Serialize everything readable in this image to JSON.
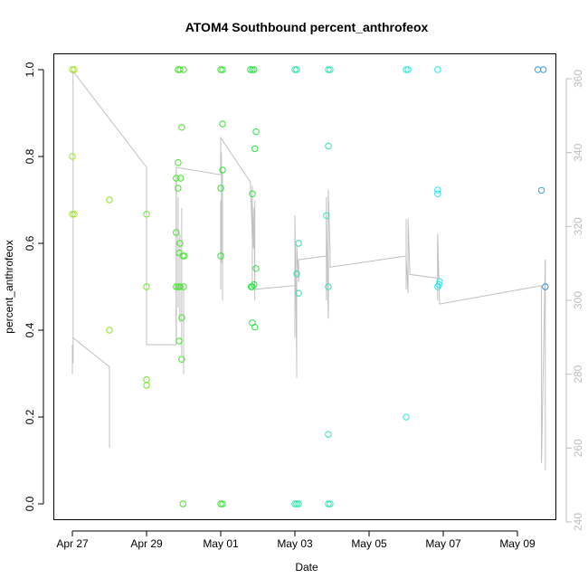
{
  "chart_data": {
    "type": "scatter",
    "title": "ATOM4 Southbound percent_anthrofeox",
    "xlabel": "Date",
    "ylabel": "percent_anthrofeox",
    "ylim": [
      0,
      1
    ],
    "y_ticks": [
      {
        "value": 0.0,
        "label": "0.0"
      },
      {
        "value": 0.2,
        "label": "0.2"
      },
      {
        "value": 0.4,
        "label": "0.4"
      },
      {
        "value": 0.6,
        "label": "0.6"
      },
      {
        "value": 0.8,
        "label": "0.8"
      },
      {
        "value": 1.0,
        "label": "1.0"
      }
    ],
    "x_range_days": [
      0,
      12.6
    ],
    "x_ticks": [
      {
        "day": 0,
        "label": "Apr 27"
      },
      {
        "day": 2,
        "label": "Apr 29"
      },
      {
        "day": 4,
        "label": "May 01"
      },
      {
        "day": 6,
        "label": "May 03"
      },
      {
        "day": 8,
        "label": "May 05"
      },
      {
        "day": 10,
        "label": "May 07"
      },
      {
        "day": 12,
        "label": "May 09"
      }
    ],
    "secondary_axis": {
      "ylim": [
        240,
        365
      ],
      "ticks": [
        {
          "value": 240,
          "label": "240"
        },
        {
          "value": 260,
          "label": "260"
        },
        {
          "value": 280,
          "label": "280"
        },
        {
          "value": 300,
          "label": "300"
        },
        {
          "value": 320,
          "label": "320"
        },
        {
          "value": 340,
          "label": "340"
        },
        {
          "value": 360,
          "label": "360"
        }
      ],
      "color": "#bdbdbd"
    },
    "points": [
      {
        "day": 0.0,
        "y": 1.0,
        "color": "#a6e22a"
      },
      {
        "day": 0.05,
        "y": 1.0,
        "color": "#a6e22a"
      },
      {
        "day": 0.0,
        "y": 0.8,
        "color": "#9ee52a"
      },
      {
        "day": 0.0,
        "y": 0.667,
        "color": "#9ee52a"
      },
      {
        "day": 0.05,
        "y": 0.667,
        "color": "#9ee52a"
      },
      {
        "day": 1.0,
        "y": 0.7,
        "color": "#8ce52a"
      },
      {
        "day": 1.0,
        "y": 0.4,
        "color": "#8ce52a"
      },
      {
        "day": 2.0,
        "y": 0.667,
        "color": "#6ee62a"
      },
      {
        "day": 2.0,
        "y": 0.5,
        "color": "#6ee62a"
      },
      {
        "day": 2.0,
        "y": 0.286,
        "color": "#6ee62a"
      },
      {
        "day": 2.0,
        "y": 0.273,
        "color": "#6ee62a"
      },
      {
        "day": 2.85,
        "y": 1.0,
        "color": "#44e52a"
      },
      {
        "day": 2.9,
        "y": 1.0,
        "color": "#44e52a"
      },
      {
        "day": 3.0,
        "y": 1.0,
        "color": "#44e52a"
      },
      {
        "day": 2.95,
        "y": 0.867,
        "color": "#44e52a"
      },
      {
        "day": 2.85,
        "y": 0.786,
        "color": "#44e52a"
      },
      {
        "day": 2.8,
        "y": 0.75,
        "color": "#44e52a"
      },
      {
        "day": 2.92,
        "y": 0.75,
        "color": "#44e52a"
      },
      {
        "day": 2.85,
        "y": 0.727,
        "color": "#44e52a"
      },
      {
        "day": 2.8,
        "y": 0.625,
        "color": "#44e52a"
      },
      {
        "day": 2.9,
        "y": 0.6,
        "color": "#44e52a"
      },
      {
        "day": 2.88,
        "y": 0.578,
        "color": "#44e52a"
      },
      {
        "day": 2.98,
        "y": 0.571,
        "color": "#44e52a"
      },
      {
        "day": 3.02,
        "y": 0.571,
        "color": "#44e52a"
      },
      {
        "day": 2.8,
        "y": 0.5,
        "color": "#44e52a"
      },
      {
        "day": 2.85,
        "y": 0.5,
        "color": "#44e52a"
      },
      {
        "day": 2.9,
        "y": 0.5,
        "color": "#44e52a"
      },
      {
        "day": 3.0,
        "y": 0.5,
        "color": "#44e52a"
      },
      {
        "day": 2.95,
        "y": 0.429,
        "color": "#44e52a"
      },
      {
        "day": 2.88,
        "y": 0.375,
        "color": "#44e52a"
      },
      {
        "day": 2.95,
        "y": 0.333,
        "color": "#44e52a"
      },
      {
        "day": 2.98,
        "y": 0.0,
        "color": "#44e52a"
      },
      {
        "day": 4.0,
        "y": 1.0,
        "color": "#32e533"
      },
      {
        "day": 4.05,
        "y": 1.0,
        "color": "#32e533"
      },
      {
        "day": 4.05,
        "y": 0.875,
        "color": "#32e533"
      },
      {
        "day": 4.05,
        "y": 0.769,
        "color": "#32e533"
      },
      {
        "day": 4.0,
        "y": 0.727,
        "color": "#32e533"
      },
      {
        "day": 4.0,
        "y": 0.571,
        "color": "#32e533"
      },
      {
        "day": 4.0,
        "y": 0.0,
        "color": "#32e533"
      },
      {
        "day": 4.05,
        "y": 0.0,
        "color": "#32e533"
      },
      {
        "day": 4.8,
        "y": 1.0,
        "color": "#2ae545"
      },
      {
        "day": 4.85,
        "y": 1.0,
        "color": "#2ae545"
      },
      {
        "day": 4.9,
        "y": 1.0,
        "color": "#2ae545"
      },
      {
        "day": 4.95,
        "y": 0.857,
        "color": "#2ae545"
      },
      {
        "day": 4.92,
        "y": 0.818,
        "color": "#2ae545"
      },
      {
        "day": 4.85,
        "y": 0.714,
        "color": "#2ae545"
      },
      {
        "day": 4.95,
        "y": 0.542,
        "color": "#2ae545"
      },
      {
        "day": 4.82,
        "y": 0.5,
        "color": "#2ae545"
      },
      {
        "day": 4.85,
        "y": 0.5,
        "color": "#2ae545"
      },
      {
        "day": 4.9,
        "y": 0.505,
        "color": "#2ae545"
      },
      {
        "day": 4.85,
        "y": 0.417,
        "color": "#2ae545"
      },
      {
        "day": 4.92,
        "y": 0.407,
        "color": "#2ae545"
      },
      {
        "day": 6.0,
        "y": 1.0,
        "color": "#2ae5a8"
      },
      {
        "day": 6.05,
        "y": 1.0,
        "color": "#2ae5a8"
      },
      {
        "day": 6.1,
        "y": 0.6,
        "color": "#2ae5a8"
      },
      {
        "day": 6.05,
        "y": 0.53,
        "color": "#2ae5a8"
      },
      {
        "day": 6.1,
        "y": 0.485,
        "color": "#2ae5a8"
      },
      {
        "day": 6.0,
        "y": 0.0,
        "color": "#2ae5a8"
      },
      {
        "day": 6.05,
        "y": 0.0,
        "color": "#2ae5a8"
      },
      {
        "day": 6.1,
        "y": 0.0,
        "color": "#2ae5a8"
      },
      {
        "day": 6.9,
        "y": 1.0,
        "color": "#2ae5bc"
      },
      {
        "day": 6.95,
        "y": 1.0,
        "color": "#2ae5bc"
      },
      {
        "day": 6.9,
        "y": 0.824,
        "color": "#2ae5bc"
      },
      {
        "day": 6.85,
        "y": 0.664,
        "color": "#2ae5bc"
      },
      {
        "day": 6.9,
        "y": 0.5,
        "color": "#2ae5bc"
      },
      {
        "day": 6.9,
        "y": 0.16,
        "color": "#2ae5bc"
      },
      {
        "day": 6.9,
        "y": 0.0,
        "color": "#2ae5bc"
      },
      {
        "day": 6.95,
        "y": 0.0,
        "color": "#2ae5bc"
      },
      {
        "day": 9.0,
        "y": 1.0,
        "color": "#2ae5e0"
      },
      {
        "day": 9.05,
        "y": 1.0,
        "color": "#2ae5e0"
      },
      {
        "day": 9.0,
        "y": 0.2,
        "color": "#2ae5e0"
      },
      {
        "day": 9.85,
        "y": 1.0,
        "color": "#2ae5f0"
      },
      {
        "day": 9.85,
        "y": 0.723,
        "color": "#2ae5f0"
      },
      {
        "day": 9.85,
        "y": 0.714,
        "color": "#2ae5f0"
      },
      {
        "day": 9.9,
        "y": 0.512,
        "color": "#2ae5f0"
      },
      {
        "day": 9.88,
        "y": 0.505,
        "color": "#2ae5f0"
      },
      {
        "day": 9.85,
        "y": 0.5,
        "color": "#2ae5f0"
      },
      {
        "day": 12.55,
        "y": 1.0,
        "color": "#3aa0e0"
      },
      {
        "day": 12.7,
        "y": 1.0,
        "color": "#3aa0e0"
      },
      {
        "day": 12.65,
        "y": 0.722,
        "color": "#3aa0e0"
      },
      {
        "day": 12.75,
        "y": 0.5,
        "color": "#3a90d8"
      }
    ],
    "secondary_trace": [
      [
        0.0,
        280
      ],
      [
        0.0,
        288
      ],
      [
        0.02,
        283
      ],
      [
        0.02,
        362
      ],
      [
        2.0,
        336
      ],
      [
        2.0,
        288
      ],
      [
        2.8,
        288
      ],
      [
        2.8,
        336
      ],
      [
        4.0,
        334
      ],
      [
        4.0,
        344
      ],
      [
        4.8,
        332
      ],
      [
        4.85,
        317
      ],
      [
        4.85,
        328
      ],
      [
        4.88,
        314
      ],
      [
        4.9,
        325
      ],
      [
        4.92,
        303
      ],
      [
        6.0,
        304
      ],
      [
        6.0,
        323
      ],
      [
        6.05,
        282
      ],
      [
        6.05,
        315
      ],
      [
        6.1,
        305
      ],
      [
        6.1,
        311
      ],
      [
        6.85,
        312
      ],
      [
        6.85,
        323
      ],
      [
        6.9,
        295
      ],
      [
        6.9,
        330
      ],
      [
        6.95,
        313
      ],
      [
        6.95,
        309
      ],
      [
        9.0,
        312
      ],
      [
        9.05,
        302
      ],
      [
        9.05,
        322
      ],
      [
        9.1,
        307
      ],
      [
        9.85,
        306
      ],
      [
        9.85,
        318
      ],
      [
        9.9,
        299
      ],
      [
        12.65,
        304
      ],
      [
        12.65,
        256
      ],
      [
        12.75,
        311
      ]
    ],
    "secondary_trace_extra": [
      [
        [
          0.0,
          290
        ],
        [
          1.0,
          282
        ],
        [
          1.0,
          260
        ]
      ],
      [
        [
          2.8,
          290
        ],
        [
          2.8,
          335
        ]
      ],
      [
        [
          2.85,
          298
        ],
        [
          2.85,
          328
        ]
      ],
      [
        [
          2.9,
          294
        ],
        [
          2.9,
          318
        ]
      ],
      [
        [
          2.95,
          285
        ],
        [
          2.95,
          325
        ]
      ],
      [
        [
          3.0,
          280
        ],
        [
          3.0,
          304
        ]
      ],
      [
        [
          4.0,
          303
        ],
        [
          4.0,
          327
        ]
      ],
      [
        [
          4.02,
          310
        ],
        [
          4.02,
          340
        ]
      ],
      [
        [
          4.05,
          300
        ],
        [
          4.05,
          335
        ]
      ],
      [
        [
          4.85,
          303
        ],
        [
          4.85,
          331
        ]
      ],
      [
        [
          4.92,
          300
        ],
        [
          4.92,
          327
        ]
      ],
      [
        [
          6.0,
          290
        ],
        [
          6.0,
          322
        ]
      ],
      [
        [
          6.05,
          279
        ],
        [
          6.05,
          310
        ]
      ],
      [
        [
          6.85,
          300
        ],
        [
          6.85,
          328
        ]
      ],
      [
        [
          6.9,
          297
        ],
        [
          6.9,
          316
        ]
      ],
      [
        [
          9.0,
          303
        ],
        [
          9.0,
          322
        ]
      ],
      [
        [
          9.85,
          300
        ],
        [
          9.85,
          316
        ]
      ],
      [
        [
          12.75,
          254
        ],
        [
          12.75,
          311
        ]
      ]
    ]
  }
}
